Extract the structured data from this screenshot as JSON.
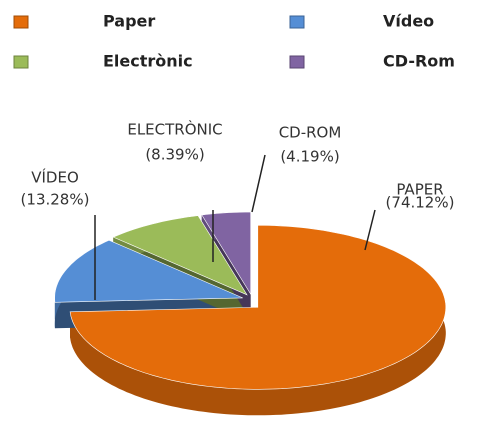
{
  "chart_data": {
    "type": "pie3d",
    "categories": [
      "Paper",
      "Vídeo",
      "Electrònic",
      "CD-Rom"
    ],
    "labels": [
      "PAPER",
      "VÍDEO",
      "ELECTRÒNIC",
      "CD-ROM"
    ],
    "values": [
      74.12,
      13.28,
      8.39,
      4.19
    ],
    "value_labels": [
      "(74.12%)",
      "(13.28%)",
      "(8.39%)",
      "(4.19%)"
    ],
    "colors": [
      "#e46c0a",
      "#558ed5",
      "#9bbb59",
      "#8064a2"
    ]
  }
}
